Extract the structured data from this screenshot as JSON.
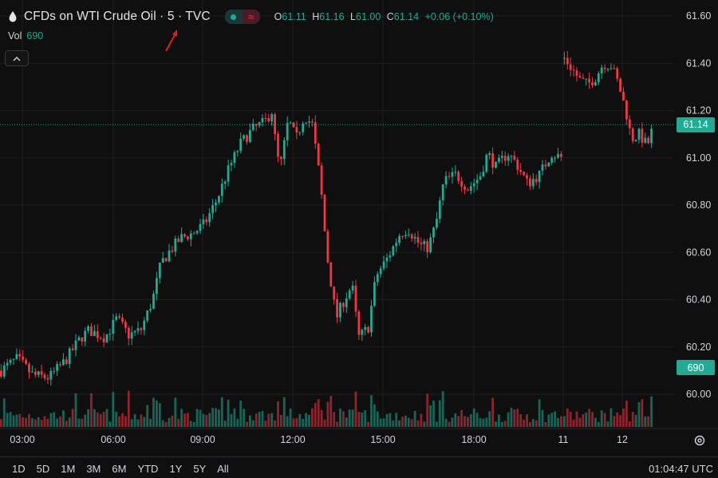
{
  "header": {
    "symbol": "CFDs on WTI Crude Oil",
    "interval": "5",
    "exchange": "TVC",
    "separator": " · ",
    "ohlc": {
      "o_label": "O",
      "o": "61.11",
      "h_label": "H",
      "h": "61.16",
      "l_label": "L",
      "l": "61.00",
      "c_label": "C",
      "c": "61.14",
      "change": "+0.06 (+0.10%)"
    },
    "vol_label": "Vol",
    "vol_value": "690"
  },
  "price_tag": "61.14",
  "volume_tag": "690",
  "time_ranges": [
    "1D",
    "5D",
    "1M",
    "3M",
    "6M",
    "YTD",
    "1Y",
    "5Y",
    "All"
  ],
  "clock": "01:04:47 UTC",
  "colors": {
    "up": "#22ab94",
    "down": "#f23645",
    "background": "#0f0f0f",
    "grid": "#1f1f1f",
    "text": "#d1d4dc"
  },
  "chart_data": {
    "type": "candlestick",
    "y_ticks": [
      "61.60",
      "61.40",
      "61.20",
      "61.00",
      "60.80",
      "60.60",
      "60.40",
      "60.20",
      "60.00"
    ],
    "ylim": [
      59.94,
      61.66
    ],
    "x_ticks": [
      "03:00",
      "06:00",
      "09:00",
      "12:00",
      "15:00",
      "18:00",
      "11",
      "12"
    ],
    "last_price": 61.14,
    "price_path": [
      [
        0,
        60.1
      ],
      [
        20,
        60.15
      ],
      [
        40,
        60.08
      ],
      [
        60,
        60.07
      ],
      [
        80,
        60.14
      ],
      [
        100,
        60.24
      ],
      [
        110,
        60.27
      ],
      [
        130,
        60.24
      ],
      [
        145,
        60.32
      ],
      [
        160,
        60.25
      ],
      [
        175,
        60.27
      ],
      [
        190,
        60.4
      ],
      [
        200,
        60.55
      ],
      [
        210,
        60.6
      ],
      [
        225,
        60.66
      ],
      [
        240,
        60.68
      ],
      [
        255,
        60.72
      ],
      [
        270,
        60.82
      ],
      [
        285,
        60.95
      ],
      [
        300,
        61.06
      ],
      [
        315,
        61.12
      ],
      [
        330,
        61.15
      ],
      [
        340,
        61.2
      ],
      [
        345,
        61.02
      ],
      [
        350,
        60.96
      ],
      [
        360,
        61.16
      ],
      [
        370,
        61.08
      ],
      [
        380,
        61.18
      ],
      [
        390,
        61.14
      ],
      [
        400,
        60.9
      ],
      [
        408,
        60.6
      ],
      [
        420,
        60.32
      ],
      [
        430,
        60.4
      ],
      [
        440,
        60.46
      ],
      [
        448,
        60.24
      ],
      [
        460,
        60.28
      ],
      [
        470,
        60.5
      ],
      [
        485,
        60.58
      ],
      [
        500,
        60.68
      ],
      [
        510,
        60.7
      ],
      [
        525,
        60.63
      ],
      [
        535,
        60.62
      ],
      [
        545,
        60.72
      ],
      [
        555,
        60.9
      ],
      [
        570,
        60.93
      ],
      [
        585,
        60.87
      ],
      [
        600,
        60.92
      ],
      [
        610,
        61.02
      ],
      [
        620,
        60.96
      ],
      [
        635,
        61.02
      ],
      [
        645,
        60.98
      ],
      [
        660,
        60.89
      ],
      [
        675,
        60.93
      ],
      [
        690,
        61.02
      ],
      [
        703,
        61.0
      ]
    ],
    "gap_path": [
      [
        706,
        61.42
      ],
      [
        715,
        61.38
      ],
      [
        725,
        61.33
      ],
      [
        735,
        61.31
      ],
      [
        745,
        61.34
      ],
      [
        755,
        61.4
      ],
      [
        765,
        61.39
      ],
      [
        775,
        61.3
      ],
      [
        783,
        61.2
      ],
      [
        790,
        61.08
      ],
      [
        800,
        61.1
      ],
      [
        810,
        61.05
      ],
      [
        818,
        61.14
      ]
    ],
    "candles_count": 168,
    "volume_last": 690
  }
}
